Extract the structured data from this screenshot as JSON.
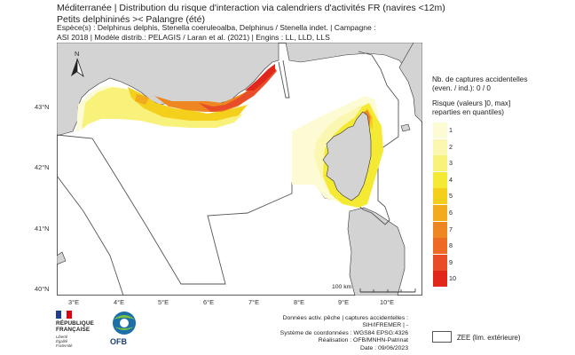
{
  "title": {
    "line1": "Méditerranée | Distribution du risque d'interaction via calendriers d'activités FR (navires <12m)",
    "line2": "Petits delphininés >< Palangre (été)"
  },
  "subtitle": {
    "line1": "Espèce(s) : Delphinus delphis, Stenella coeruleoalba, Delphinus / Stenella indet. | Campagne :",
    "line2": "ASI 2018 | Modèle distrib.: PELAGIS / Laran et al. (2021) | Engins : LL, LLD, LLS"
  },
  "map": {
    "lon_ticks": [
      "3°E",
      "4°E",
      "5°E",
      "6°E",
      "7°E",
      "8°E",
      "9°E",
      "10°E"
    ],
    "lat_ticks": [
      "43°N",
      "42°N",
      "41°N",
      "40°N"
    ],
    "north_label": "N",
    "scale_label": "100 km",
    "colors": {
      "sea": "#ffffff",
      "land": "#d3d3d3",
      "coast": "#333333",
      "zee": "#555555"
    }
  },
  "legend": {
    "captures_title_line1": "Nb. de captures accidentelles",
    "captures_title_line2": "(even. / ind.):  0 / 0",
    "risk_title_line1": "Risque (valeurs ]0, max]",
    "risk_title_line2": "reparties en quantiles)",
    "classes": [
      {
        "label": "1",
        "color": "#fdfbd4"
      },
      {
        "label": "2",
        "color": "#fbf7b0"
      },
      {
        "label": "3",
        "color": "#f8f27a"
      },
      {
        "label": "4",
        "color": "#f5ea33"
      },
      {
        "label": "5",
        "color": "#f4cf1c"
      },
      {
        "label": "6",
        "color": "#f1ab1c"
      },
      {
        "label": "7",
        "color": "#ee8721"
      },
      {
        "label": "8",
        "color": "#ec6a26"
      },
      {
        "label": "9",
        "color": "#e84c28"
      },
      {
        "label": "10",
        "color": "#e1261c"
      }
    ]
  },
  "footer": {
    "line1": "Données activ. pêche | captures accidentelles :",
    "line2": "SIH/IFREMER | -",
    "line3": "Système de coordonnées : WGS84 EPSG:4326",
    "line4": "Réalisation : OFB/MNHN-Patrinat",
    "line5": "Date : 09/06/2023"
  },
  "zee_label": "ZEE (lim. extérieure)",
  "logos": {
    "rf_line1": "RÉPUBLIQUE",
    "rf_line2": "FRANÇAISE",
    "rf_motto1": "Liberté",
    "rf_motto2": "Égalité",
    "rf_motto3": "Fraternité",
    "ofb": "OFB"
  }
}
